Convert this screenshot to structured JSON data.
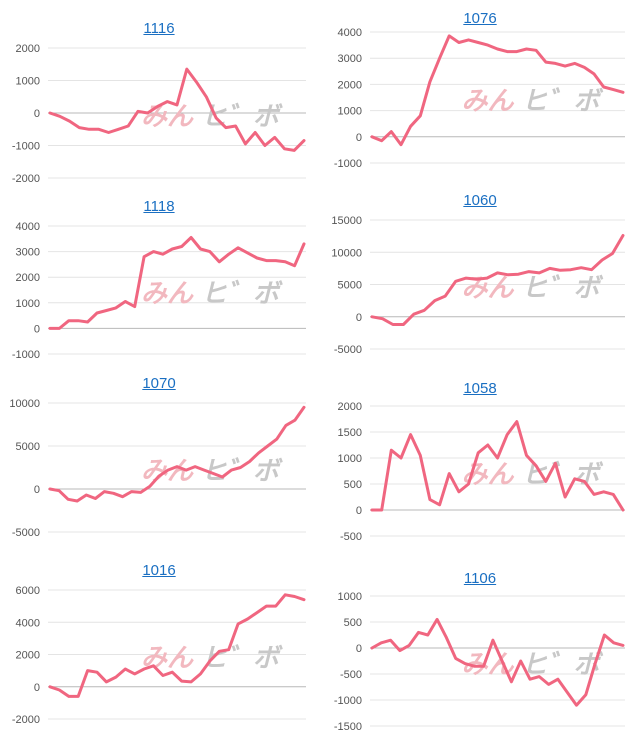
{
  "watermark": {
    "part1": "みん",
    "part2": "ヒ゛ボ"
  },
  "line_color": "#f06680",
  "chart_data": [
    {
      "type": "line",
      "title": "1116",
      "ylim": [
        -2000,
        2000
      ],
      "yticks": [
        2000,
        1000,
        0,
        -1000,
        -2000
      ],
      "values": [
        0,
        -100,
        -250,
        -450,
        -500,
        -500,
        -600,
        -500,
        -400,
        50,
        0,
        200,
        350,
        250,
        1350,
        950,
        500,
        -150,
        -450,
        -400,
        -950,
        -600,
        -1000,
        -750,
        -1100,
        -1150,
        -850
      ]
    },
    {
      "type": "line",
      "title": "1076",
      "ylim": [
        -1000,
        4000
      ],
      "yticks": [
        4000,
        3000,
        2000,
        1000,
        0,
        -1000
      ],
      "values": [
        0,
        -150,
        200,
        -300,
        400,
        800,
        2100,
        3000,
        3850,
        3600,
        3700,
        3600,
        3500,
        3350,
        3250,
        3250,
        3350,
        3300,
        2850,
        2800,
        2700,
        2800,
        2650,
        2400,
        1900,
        1800,
        1700
      ]
    },
    {
      "type": "line",
      "title": "1118",
      "ylim": [
        -1000,
        4000
      ],
      "yticks": [
        4000,
        3000,
        2000,
        1000,
        0,
        -1000
      ],
      "values": [
        0,
        0,
        300,
        300,
        250,
        600,
        700,
        800,
        1050,
        850,
        2800,
        3000,
        2900,
        3100,
        3200,
        3550,
        3100,
        3000,
        2600,
        2900,
        3150,
        2950,
        2750,
        2650,
        2650,
        2600,
        2450,
        3300
      ]
    },
    {
      "type": "line",
      "title": "1060",
      "ylim": [
        -5000,
        15000
      ],
      "yticks": [
        15000,
        10000,
        5000,
        0,
        -5000
      ],
      "values": [
        0,
        -300,
        -1200,
        -1200,
        400,
        1000,
        2500,
        3200,
        5500,
        6000,
        5800,
        6000,
        6800,
        6500,
        6600,
        7000,
        6800,
        7500,
        7200,
        7300,
        7600,
        7300,
        8800,
        9800,
        12600
      ]
    },
    {
      "type": "line",
      "title": "1070",
      "ylim": [
        -5000,
        10000
      ],
      "yticks": [
        10000,
        5000,
        0,
        -5000
      ],
      "values": [
        0,
        -200,
        -1200,
        -1400,
        -700,
        -1100,
        -300,
        -500,
        -900,
        -300,
        -400,
        300,
        1500,
        2200,
        2600,
        2200,
        2600,
        2200,
        1800,
        1400,
        2200,
        2500,
        3200,
        4200,
        5000,
        5800,
        7400,
        8000,
        9500
      ]
    },
    {
      "type": "line",
      "title": "1058",
      "ylim": [
        -500,
        2000
      ],
      "yticks": [
        2000,
        1500,
        1000,
        500,
        0,
        -500
      ],
      "values": [
        0,
        0,
        1150,
        1000,
        1450,
        1050,
        200,
        100,
        700,
        350,
        500,
        1100,
        1250,
        1000,
        1450,
        1700,
        1050,
        850,
        550,
        900,
        250,
        600,
        550,
        300,
        350,
        300,
        0
      ]
    },
    {
      "type": "line",
      "title": "1016",
      "ylim": [
        -2000,
        6000
      ],
      "yticks": [
        6000,
        4000,
        2000,
        0,
        -2000
      ],
      "values": [
        0,
        -200,
        -600,
        -600,
        1000,
        900,
        300,
        600,
        1100,
        800,
        1100,
        1300,
        700,
        900,
        350,
        300,
        800,
        1600,
        2200,
        2300,
        3900,
        4200,
        4600,
        5000,
        5000,
        5700,
        5600,
        5400
      ]
    },
    {
      "type": "line",
      "title": "1106",
      "ylim": [
        -1500,
        1000
      ],
      "yticks": [
        1000,
        500,
        0,
        -500,
        -1000,
        -1500
      ],
      "values": [
        0,
        100,
        150,
        -50,
        50,
        300,
        250,
        550,
        200,
        -200,
        -300,
        -350,
        -350,
        150,
        -250,
        -650,
        -250,
        -600,
        -550,
        -700,
        -600,
        -850,
        -1100,
        -900,
        -300,
        250,
        100,
        50
      ]
    }
  ]
}
